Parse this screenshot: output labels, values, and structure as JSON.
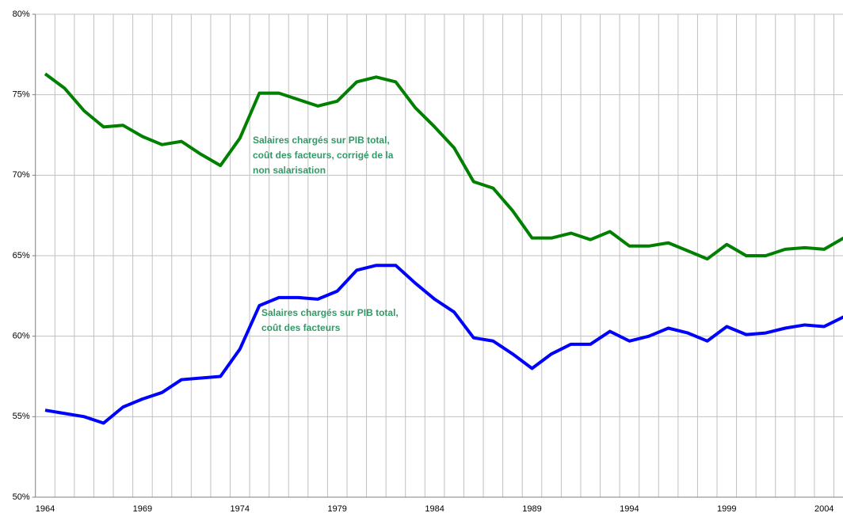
{
  "chart_data": {
    "type": "line",
    "categories": [
      "1964",
      null,
      null,
      null,
      null,
      "1969",
      null,
      null,
      null,
      null,
      "1974",
      null,
      null,
      null,
      null,
      "1979",
      null,
      null,
      null,
      null,
      "1984",
      null,
      null,
      null,
      null,
      "1989",
      null,
      null,
      null,
      null,
      "1994",
      null,
      null,
      null,
      null,
      "1999",
      null,
      null,
      null,
      null,
      "2004",
      null
    ],
    "series": [
      {
        "color": "#008000",
        "values": [
          76.3,
          75.4,
          74.0,
          73.0,
          73.1,
          72.4,
          71.9,
          72.1,
          71.3,
          70.6,
          72.3,
          75.1,
          75.1,
          74.7,
          74.3,
          74.6,
          75.8,
          76.1,
          75.8,
          74.2,
          73.0,
          71.7,
          69.6,
          69.2,
          67.8,
          66.1,
          66.1,
          66.4,
          66.0,
          66.5,
          65.6,
          65.6,
          65.8,
          65.3,
          64.8,
          65.7,
          65.0,
          65.0,
          65.4,
          65.5,
          65.4,
          66.1
        ]
      },
      {
        "color": "#0000ff",
        "values": [
          55.4,
          55.2,
          55.0,
          54.6,
          55.6,
          56.1,
          56.5,
          57.3,
          57.4,
          57.5,
          59.2,
          61.9,
          62.4,
          62.4,
          62.3,
          62.8,
          64.1,
          64.4,
          64.4,
          63.3,
          62.3,
          61.5,
          59.9,
          59.7,
          58.9,
          58.0,
          58.9,
          59.5,
          59.5,
          60.3,
          59.7,
          60.0,
          60.5,
          60.2,
          59.7,
          60.6,
          60.1,
          60.2,
          60.5,
          60.7,
          60.6,
          61.2
        ]
      }
    ],
    "ylim": [
      50,
      80
    ],
    "yticks": [
      {
        "value": 50,
        "label": "50%"
      },
      {
        "value": 55,
        "label": "55%"
      },
      {
        "value": 60,
        "label": "60%"
      },
      {
        "value": 65,
        "label": "65%"
      },
      {
        "value": 70,
        "label": "70%"
      },
      {
        "value": 75,
        "label": "75%"
      },
      {
        "value": 80,
        "label": "80%"
      }
    ],
    "grid": true,
    "annotations": [
      {
        "lines": [
          "Salaires chargés sur PIB total,",
          "coût des  facteurs, corrigé de la",
          "non salarisation"
        ]
      },
      {
        "lines": [
          "Salaires chargés sur PIB total,",
          "coût des  facteurs"
        ]
      }
    ]
  }
}
